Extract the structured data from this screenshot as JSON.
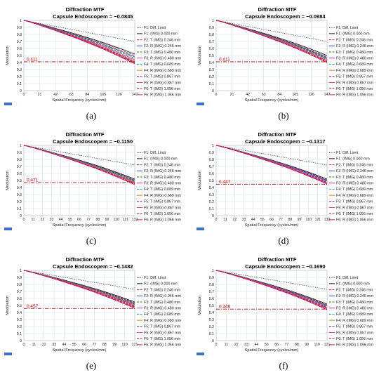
{
  "legend": [
    "F1: Diff. Limit",
    "F1: (IMG) 0.000 mm",
    "F2: T (IMG) 0.246 mm",
    "F2: R (IMG) 0.246 mm",
    "F3: T (IMG) 0.480 mm",
    "F3: R (IMG) 0.480 mm",
    "F4: T (IMG) 0.689 mm",
    "F4: R (IMG) 0.689 mm",
    "F5: T (IMG) 0.867 mm",
    "F5: R (IMG) 0.867 mm",
    "F6: T (IMG) 1.056 mm",
    "F6: R (IMG) 1.056 mm"
  ],
  "colors": {
    "diff": "#444444",
    "series": [
      "#111111",
      "#e03030",
      "#2050c0",
      "#1a8a1a",
      "#c030c0",
      "#20a0a0",
      "#d08000",
      "#7a1a7a",
      "#e040a0",
      "#a02020",
      "#d01060"
    ],
    "threshold": "#cc0000",
    "grid": "#cfd8e0"
  },
  "chart_data": [
    {
      "type": "line",
      "caption": "(a)",
      "title_line1": "Diffraction MTF",
      "title_line2": "Capsule Endoscope",
      "m_label": "m = −0.0845",
      "threshold_label": "0.411",
      "threshold": 0.411,
      "xlabel": "Spatial Frequency (cycles/mm)",
      "ylabel": "Modulation",
      "xlim": [
        0,
        147
      ],
      "ylim": [
        0,
        1
      ],
      "xticks": [
        "0",
        "21",
        "42",
        "63",
        "84",
        "105",
        "126",
        "147"
      ],
      "yticks": [
        "0",
        "0.1",
        "0.2",
        "0.3",
        "0.4",
        "0.5",
        "0.6",
        "0.7",
        "0.8",
        "0.9",
        "1"
      ],
      "diff_end": 0.7,
      "series_end": [
        0.52,
        0.5,
        0.48,
        0.46,
        0.44,
        0.42,
        0.42,
        0.41,
        0.4,
        0.39,
        0.38
      ]
    },
    {
      "type": "line",
      "caption": "(b)",
      "title_line1": "Diffraction MTF",
      "title_line2": "Capsule Endoscope",
      "m_label": "m = −0.0984",
      "threshold_label": "0.411",
      "threshold": 0.411,
      "xlabel": "Spatial Frequency (cycles/mm)",
      "ylabel": "Modulation",
      "xlim": [
        0,
        147
      ],
      "ylim": [
        0,
        1
      ],
      "xticks": [
        "0",
        "21",
        "42",
        "63",
        "84",
        "105",
        "126",
        "147"
      ],
      "yticks": [
        "0",
        "0.1",
        "0.2",
        "0.3",
        "0.4",
        "0.5",
        "0.6",
        "0.7",
        "0.8",
        "0.9",
        "1"
      ],
      "diff_end": 0.7,
      "series_end": [
        0.5,
        0.48,
        0.47,
        0.46,
        0.45,
        0.44,
        0.43,
        0.42,
        0.42,
        0.41,
        0.4
      ]
    },
    {
      "type": "line",
      "caption": "(c)",
      "title_line1": "Diffraction MTF",
      "title_line2": "Capsule Endoscope",
      "m_label": "m = −0.1150",
      "threshold_label": "0.471",
      "threshold": 0.471,
      "xlabel": "Spatial Frequency (cycles/mm)",
      "ylabel": "Modulation",
      "xlim": [
        0,
        132
      ],
      "ylim": [
        0,
        1
      ],
      "xticks": [
        "0",
        "11",
        "22",
        "33",
        "44",
        "55",
        "66",
        "77",
        "88",
        "99",
        "110",
        "121",
        "132"
      ],
      "yticks": [
        "0",
        "0.1",
        "0.2",
        "0.3",
        "0.4",
        "0.5",
        "0.6",
        "0.7",
        "0.8",
        "0.9",
        "1"
      ],
      "diff_end": 0.72,
      "series_end": [
        0.52,
        0.51,
        0.5,
        0.49,
        0.48,
        0.48,
        0.47,
        0.46,
        0.46,
        0.45,
        0.44
      ]
    },
    {
      "type": "line",
      "caption": "(d)",
      "title_line1": "Diffraction MTF",
      "title_line2": "Capsule Endoscope",
      "m_label": "m = −0.1317",
      "threshold_label": "0.447",
      "threshold": 0.447,
      "xlabel": "Spatial Frequency (cycles/mm)",
      "ylabel": "Modulation",
      "xlim": [
        0,
        132
      ],
      "ylim": [
        0,
        1
      ],
      "xticks": [
        "0",
        "11",
        "22",
        "33",
        "44",
        "55",
        "66",
        "77",
        "88",
        "99",
        "110",
        "121",
        "132"
      ],
      "yticks": [
        "0",
        "0.1",
        "0.2",
        "0.3",
        "0.4",
        "0.5",
        "0.6",
        "0.7",
        "0.8",
        "0.9",
        "1"
      ],
      "diff_end": 0.72,
      "series_end": [
        0.52,
        0.51,
        0.5,
        0.49,
        0.49,
        0.48,
        0.47,
        0.47,
        0.46,
        0.45,
        0.45
      ]
    },
    {
      "type": "line",
      "caption": "(e)",
      "title_line1": "Diffraction MTF",
      "title_line2": "Capsule Endoscope",
      "m_label": "m = −0.1482",
      "threshold_label": "0.457",
      "threshold": 0.457,
      "xlabel": "Spatial Frequency (cycles/mm)",
      "ylabel": "Modulation",
      "xlim": [
        0,
        121
      ],
      "ylim": [
        0,
        1
      ],
      "xticks": [
        "0",
        "11",
        "22",
        "33",
        "44",
        "55",
        "66",
        "77",
        "88",
        "99",
        "110",
        "121"
      ],
      "yticks": [
        "0",
        "0.1",
        "0.2",
        "0.3",
        "0.4",
        "0.5",
        "0.6",
        "0.7",
        "0.8",
        "0.9",
        "1"
      ],
      "diff_end": 0.73,
      "series_end": [
        0.55,
        0.54,
        0.53,
        0.52,
        0.51,
        0.5,
        0.5,
        0.49,
        0.48,
        0.47,
        0.46
      ]
    },
    {
      "type": "line",
      "caption": "(f)",
      "title_line1": "Diffraction MTF",
      "title_line2": "Capsule Endoscope",
      "m_label": "m = −0.1690",
      "threshold_label": "0.448",
      "threshold": 0.448,
      "xlabel": "Spatial Frequency (cycles/mm)",
      "ylabel": "Modulation",
      "xlim": [
        0,
        121
      ],
      "ylim": [
        0,
        1
      ],
      "xticks": [
        "0",
        "11",
        "22",
        "33",
        "44",
        "55",
        "66",
        "77",
        "88",
        "99",
        "110",
        "121"
      ],
      "yticks": [
        "0",
        "0.1",
        "0.2",
        "0.3",
        "0.4",
        "0.5",
        "0.6",
        "0.7",
        "0.8",
        "0.9",
        "1"
      ],
      "diff_end": 0.73,
      "series_end": [
        0.52,
        0.51,
        0.5,
        0.5,
        0.49,
        0.48,
        0.47,
        0.47,
        0.46,
        0.45,
        0.44
      ]
    }
  ]
}
